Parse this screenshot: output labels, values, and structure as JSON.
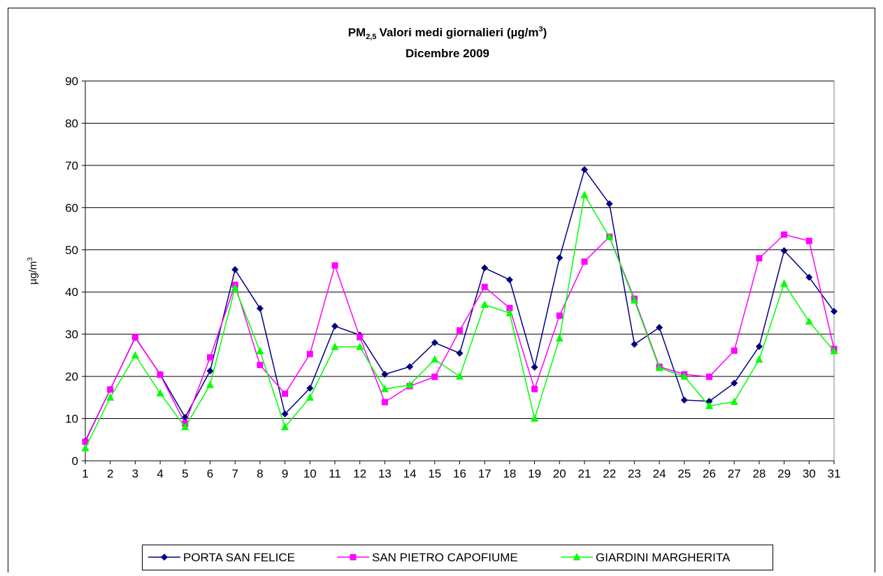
{
  "chart_data": {
    "type": "line",
    "title": [
      "PM",
      "2,5",
      "Valori medi giornalieri (µg/m",
      "3",
      ")"
    ],
    "subtitle": "Dicembre 2009",
    "ylabel": [
      "µg/m",
      "3"
    ],
    "x": [
      1,
      2,
      3,
      4,
      5,
      6,
      7,
      8,
      9,
      10,
      11,
      12,
      13,
      14,
      15,
      16,
      17,
      18,
      19,
      20,
      21,
      22,
      23,
      24,
      25,
      26,
      27,
      28,
      29,
      30,
      31
    ],
    "xlim": [
      1,
      31
    ],
    "xticks": [
      1,
      2,
      3,
      4,
      5,
      6,
      7,
      8,
      9,
      10,
      11,
      12,
      13,
      14,
      15,
      16,
      17,
      18,
      19,
      20,
      21,
      22,
      23,
      24,
      25,
      26,
      27,
      28,
      29,
      30,
      31
    ],
    "ylim": [
      0,
      90
    ],
    "yticks": [
      0,
      10,
      20,
      30,
      40,
      50,
      60,
      70,
      80,
      90
    ],
    "grid": true,
    "legend": "bottom",
    "series": [
      {
        "name": "PORTA SAN FELICE",
        "color": "#000080",
        "marker": "diamond",
        "values": [
          4.7,
          16.9,
          29.2,
          20.5,
          10.3,
          21.3,
          45.3,
          36.1,
          11.1,
          17.2,
          31.9,
          29.8,
          20.5,
          22.3,
          28.0,
          25.5,
          45.7,
          42.9,
          22.2,
          48.1,
          69.0,
          60.9,
          27.6,
          31.6,
          14.4,
          14.1,
          18.4,
          27.1,
          49.8,
          43.5,
          35.4
        ]
      },
      {
        "name": "SAN PIETRO CAPOFIUME",
        "color": "#ff00ff",
        "marker": "square",
        "values": [
          4.5,
          16.9,
          29.3,
          20.4,
          8.8,
          24.5,
          41.7,
          22.7,
          15.9,
          25.3,
          46.3,
          29.3,
          13.9,
          17.7,
          19.9,
          30.9,
          41.2,
          36.2,
          17.0,
          34.4,
          47.2,
          53.1,
          38.4,
          22.3,
          20.5,
          19.9,
          26.1,
          48.0,
          53.6,
          52.1,
          26.5
        ]
      },
      {
        "name": "GIARDINI MARGHERITA",
        "color": "#00ff00",
        "marker": "triangle",
        "values": [
          3,
          15,
          25,
          16,
          8,
          18,
          41,
          26,
          8,
          15,
          27,
          27,
          17,
          18,
          24,
          20,
          37,
          35,
          10,
          29,
          63,
          53,
          38,
          22,
          20,
          13,
          14,
          24,
          42,
          33,
          26
        ]
      }
    ]
  }
}
